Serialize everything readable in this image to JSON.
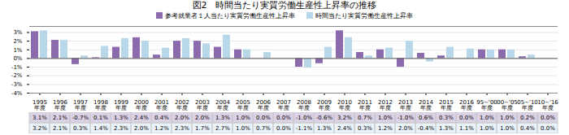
{
  "chart_data": {
    "type": "bar",
    "title": "図2　時間当たり実質労働生産性上昇率の推移",
    "categories": [
      "1995\n年度",
      "1996\n年度",
      "1997\n年度",
      "1998\n年度",
      "1999\n年度",
      "2000\n年度",
      "2001\n年度",
      "2002\n年度",
      "2003\n年度",
      "2004\n年度",
      "2005\n年度",
      "2006\n年度",
      "2007\n年度",
      "2008\n年度",
      "2009\n年度",
      "2010\n年度",
      "2011\n年度",
      "2012\n年度",
      "2013\n年度",
      "2014\n年度",
      "2015\n年度",
      "2016\n年度",
      "95~'00\n年度",
      "00~'05\n年度",
      "05~'10\n年度",
      "10~'16\n年度"
    ],
    "series": [
      {
        "name": "参考就業者１人当たり実質労働生産性上昇率",
        "color": "#8b6aad",
        "values": [
          3.1,
          2.1,
          -0.7,
          0.1,
          1.3,
          2.4,
          0.4,
          2.0,
          2.0,
          1.3,
          1.0,
          0.0,
          0.0,
          -1.0,
          -0.6,
          3.2,
          0.7,
          1.0,
          -1.0,
          0.6,
          0.3,
          0.0,
          1.0,
          1.0,
          0.2,
          0.0
        ],
        "value_labels": [
          "3.1%",
          "2.1%",
          "-0.7%",
          "0.1%",
          "1.3%",
          "2.4%",
          "0.4%",
          "2.0%",
          "2.0%",
          "1.3%",
          "1.0%",
          "0.0%",
          "0.0%",
          "-1.0%",
          "-0.6%",
          "3.2%",
          "0.7%",
          "1.0%",
          "-1.0%",
          "0.6%",
          "0.3%",
          "0.0%",
          "1.0%",
          "1.0%",
          "0.2%",
          "0.0%"
        ]
      },
      {
        "name": "時間当たり実質労働生産性上昇率",
        "color": "#b8d8ea",
        "values": [
          3.2,
          2.1,
          0.3,
          1.4,
          2.3,
          2.0,
          1.2,
          2.3,
          1.7,
          2.7,
          1.0,
          0.7,
          0.0,
          -1.1,
          1.3,
          2.4,
          0.3,
          1.2,
          2.0,
          -0.4,
          1.3,
          1.1,
          1.0,
          1.0,
          0.4,
          0.0
        ],
        "value_labels": [
          "3.2%",
          "2.1%",
          "0.3%",
          "1.4%",
          "2.3%",
          "2.0%",
          "1.2%",
          "2.3%",
          "1.7%",
          "2.7%",
          "1.0%",
          "0.7%",
          "0.0%",
          "-1.1%",
          "1.3%",
          "2.4%",
          "0.3%",
          "1.2%",
          "2.0%",
          "-0.4%",
          "1.3%",
          "1.1%",
          "1.0%",
          "1.0%",
          "0.4%",
          "0.0%"
        ]
      }
    ],
    "ylim": [
      -4.0,
      3.7
    ],
    "yticks": [
      {
        "value": -4,
        "label": "-4%"
      },
      {
        "value": -3,
        "label": "-3%"
      },
      {
        "value": -2,
        "label": "-2%"
      },
      {
        "value": -1,
        "label": "-1%"
      },
      {
        "value": 0,
        "label": "0%"
      },
      {
        "value": 1,
        "label": "1%"
      },
      {
        "value": 2,
        "label": "2%"
      },
      {
        "value": 3,
        "label": "3%"
      }
    ],
    "grid": true,
    "legend": "top",
    "data_labels": true
  }
}
